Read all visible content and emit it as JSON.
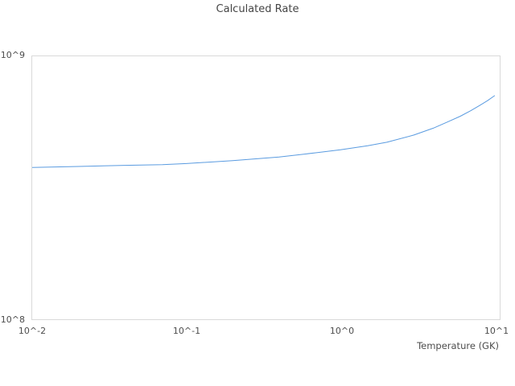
{
  "chart_data": {
    "type": "line",
    "title": "Calculated Rate",
    "xlabel": "Temperature (GK)",
    "ylabel": "",
    "x_scale": "log",
    "y_scale": "log",
    "xlim": [
      0.01,
      10.8
    ],
    "ylim": [
      100000000.0,
      1000000000.0
    ],
    "grid": false,
    "legend": "none",
    "x_tick_labels": [
      "10^-2",
      "10^-1",
      "10^0",
      "10^1"
    ],
    "y_tick_labels": [
      "10^8",
      "10^9"
    ],
    "series": [
      {
        "name": "Calculated Rate",
        "color": "#5a9be0",
        "x": [
          0.01,
          0.02,
          0.04,
          0.07,
          0.1,
          0.2,
          0.4,
          0.7,
          1.0,
          1.5,
          2.0,
          3.0,
          4.0,
          5.0,
          6.0,
          7.0,
          8.0,
          9.0,
          10.0
        ],
        "y": [
          378000000.0,
          381000000.0,
          385000000.0,
          387000000.0,
          391000000.0,
          401000000.0,
          414000000.0,
          430000000.0,
          441000000.0,
          457000000.0,
          471000000.0,
          502000000.0,
          533000000.0,
          564000000.0,
          592000000.0,
          621000000.0,
          650000000.0,
          678000000.0,
          708000000.0
        ]
      }
    ]
  },
  "colors": {
    "background": "#ffffff",
    "frame": "#d9d9d9",
    "text": "#4d4d4d",
    "line": "#5a9be0"
  }
}
